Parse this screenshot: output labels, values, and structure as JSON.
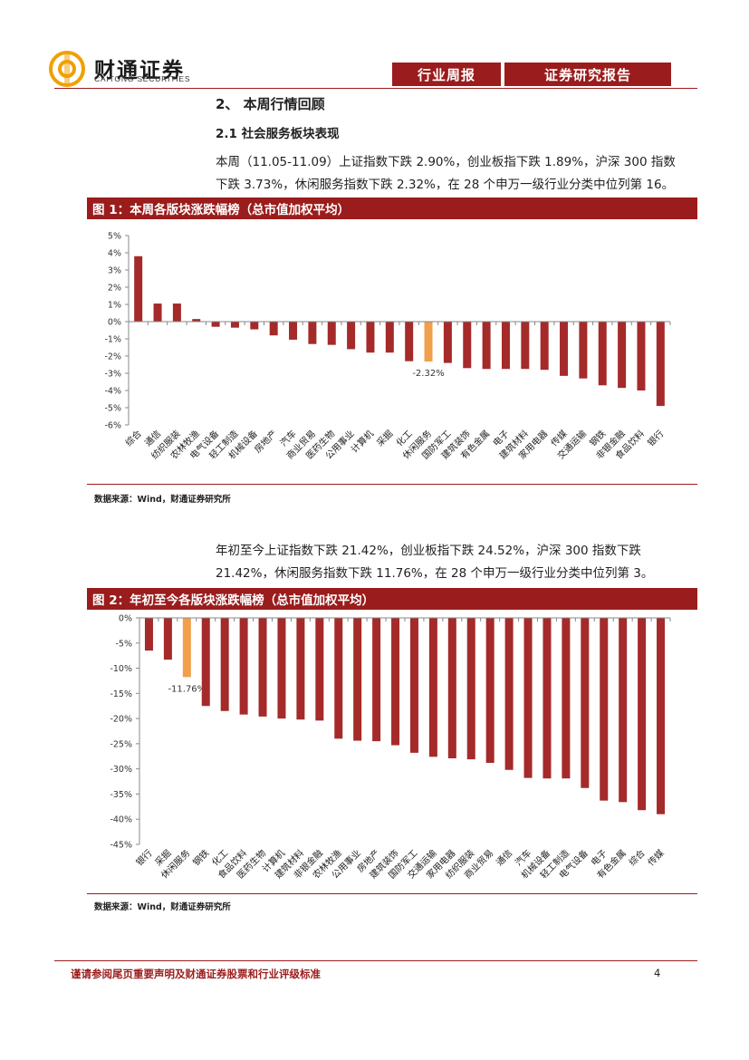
{
  "header": {
    "logo_cn": "财通证券",
    "logo_en": "CAITONG SECURITIES",
    "tab1": "行业周报",
    "tab2": "证券研究报告"
  },
  "section": {
    "title": "2、 本周行情回顾",
    "subtitle": "2.1  社会服务板块表现",
    "para1": "本周（11.05-11.09）上证指数下跌 2.90%，创业板指下跌 1.89%，沪深 300 指数下跌 3.73%，休闲服务指数下跌 2.32%，在 28 个申万一级行业分类中位列第 16。",
    "para2": "年初至今上证指数下跌 21.42%，创业板指下跌 24.52%，沪深 300 指数下跌 21.42%，休闲服务指数下跌 11.76%，在 28 个申万一级行业分类中位列第 3。"
  },
  "figure1": {
    "title": "图 1：本周各版块涨跌幅榜（总市值加权平均）",
    "source": "数据来源：Wind，财通证券研究所"
  },
  "figure2": {
    "title": "图 2：年初至今各版块涨跌幅榜（总市值加权平均）",
    "source": "数据来源：Wind，财通证券研究所"
  },
  "footer": {
    "disclaimer": "谨请参阅尾页重要声明及财通证券股票和行业评级标准",
    "page": "4"
  },
  "colors": {
    "bar": "#a52a2a",
    "highlight": "#f0a04b",
    "brand": "#9b1c1c"
  },
  "chart_data": [
    {
      "type": "bar",
      "title": "图 1：本周各版块涨跌幅榜（总市值加权平均）",
      "categories": [
        "综合",
        "通信",
        "纺织服装",
        "农林牧渔",
        "电气设备",
        "轻工制造",
        "机械设备",
        "房地产",
        "汽车",
        "商业贸易",
        "医药生物",
        "公用事业",
        "计算机",
        "采掘",
        "化工",
        "休闲服务",
        "国防军工",
        "建筑装饰",
        "有色金属",
        "电子",
        "建筑材料",
        "家用电器",
        "传媒",
        "交通运输",
        "钢铁",
        "非银金融",
        "食品饮料",
        "银行"
      ],
      "values": [
        3.8,
        1.05,
        1.05,
        0.15,
        -0.3,
        -0.35,
        -0.45,
        -0.8,
        -1.05,
        -1.3,
        -1.35,
        -1.6,
        -1.8,
        -1.8,
        -2.3,
        -2.32,
        -2.4,
        -2.7,
        -2.75,
        -2.75,
        -2.75,
        -2.8,
        -3.15,
        -3.3,
        -3.7,
        -3.85,
        -4.0,
        -4.9
      ],
      "highlight": "休闲服务",
      "highlight_label": "-2.32%",
      "ylim": [
        -6,
        5
      ],
      "yticks": [
        "5%",
        "4%",
        "3%",
        "2%",
        "1%",
        "0%",
        "-1%",
        "-2%",
        "-3%",
        "-4%",
        "-5%",
        "-6%"
      ]
    },
    {
      "type": "bar",
      "title": "图 2：年初至今各版块涨跌幅榜（总市值加权平均）",
      "categories": [
        "银行",
        "采掘",
        "休闲服务",
        "钢铁",
        "化工",
        "食品饮料",
        "医药生物",
        "计算机",
        "建筑材料",
        "非银金融",
        "农林牧渔",
        "公用事业",
        "房地产",
        "建筑装饰",
        "国防军工",
        "交通运输",
        "家用电器",
        "纺织服装",
        "商业贸易",
        "通信",
        "汽车",
        "机械设备",
        "轻工制造",
        "电气设备",
        "电子",
        "有色金属",
        "综合",
        "传媒"
      ],
      "values": [
        -6.5,
        -8.3,
        -11.76,
        -17.5,
        -18.5,
        -19.2,
        -19.6,
        -20.0,
        -20.2,
        -20.4,
        -24.0,
        -24.4,
        -24.5,
        -25.3,
        -26.8,
        -27.6,
        -27.9,
        -28.1,
        -28.8,
        -30.2,
        -31.8,
        -31.9,
        -31.9,
        -33.8,
        -36.3,
        -36.6,
        -38.2,
        -39.0
      ],
      "highlight": "休闲服务",
      "highlight_label": "-11.76%",
      "ylim": [
        -45,
        0
      ],
      "yticks": [
        "0%",
        "-5%",
        "-10%",
        "-15%",
        "-20%",
        "-25%",
        "-30%",
        "-35%",
        "-40%",
        "-45%"
      ]
    }
  ]
}
